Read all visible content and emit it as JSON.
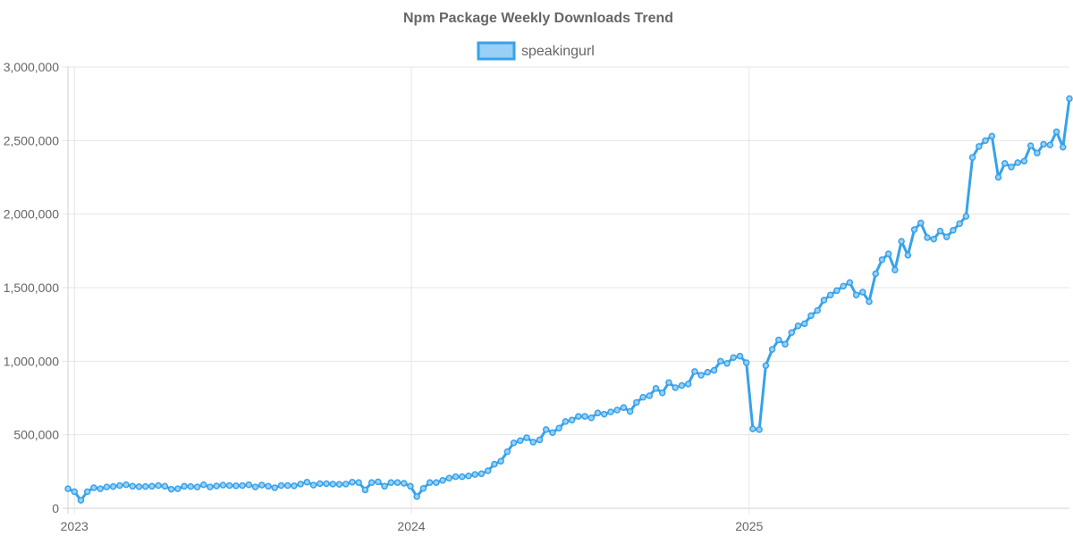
{
  "chart_data": {
    "type": "line",
    "title": "Npm Package Weekly Downloads Trend",
    "legend_position": "top-center",
    "grid": true,
    "colors": {
      "line": "#36a2eb",
      "fill": "#9ad0f5"
    },
    "ylim": [
      0,
      3000000
    ],
    "y_ticks": [
      0,
      500000,
      1000000,
      1500000,
      2000000,
      2500000,
      3000000
    ],
    "y_tick_labels": [
      "0",
      "500,000",
      "1,000,000",
      "1,500,000",
      "2,000,000",
      "2,500,000",
      "3,000,000"
    ],
    "x_range": [
      "2022-12-25",
      "2025-12-14"
    ],
    "x_ticks": [
      "2023-01-01",
      "2024-01-01",
      "2025-01-01"
    ],
    "x_tick_labels": [
      "2023",
      "2024",
      "2025"
    ],
    "series": [
      {
        "name": "speakingurl",
        "x": [
          "2022-12-25",
          "2023-01-01",
          "2023-01-08",
          "2023-01-15",
          "2023-01-22",
          "2023-01-29",
          "2023-02-05",
          "2023-02-12",
          "2023-02-19",
          "2023-02-26",
          "2023-03-05",
          "2023-03-12",
          "2023-03-19",
          "2023-03-26",
          "2023-04-02",
          "2023-04-09",
          "2023-04-16",
          "2023-04-23",
          "2023-04-30",
          "2023-05-07",
          "2023-05-14",
          "2023-05-21",
          "2023-05-28",
          "2023-06-04",
          "2023-06-11",
          "2023-06-18",
          "2023-06-25",
          "2023-07-02",
          "2023-07-09",
          "2023-07-16",
          "2023-07-23",
          "2023-07-30",
          "2023-08-06",
          "2023-08-13",
          "2023-08-20",
          "2023-08-27",
          "2023-09-03",
          "2023-09-10",
          "2023-09-17",
          "2023-09-24",
          "2023-10-01",
          "2023-10-08",
          "2023-10-15",
          "2023-10-22",
          "2023-10-29",
          "2023-11-05",
          "2023-11-12",
          "2023-11-19",
          "2023-11-26",
          "2023-12-03",
          "2023-12-10",
          "2023-12-17",
          "2023-12-24",
          "2023-12-31",
          "2024-01-07",
          "2024-01-14",
          "2024-01-21",
          "2024-01-28",
          "2024-02-04",
          "2024-02-11",
          "2024-02-18",
          "2024-02-25",
          "2024-03-03",
          "2024-03-10",
          "2024-03-17",
          "2024-03-24",
          "2024-03-31",
          "2024-04-07",
          "2024-04-14",
          "2024-04-21",
          "2024-04-28",
          "2024-05-05",
          "2024-05-12",
          "2024-05-19",
          "2024-05-26",
          "2024-06-02",
          "2024-06-09",
          "2024-06-16",
          "2024-06-23",
          "2024-06-30",
          "2024-07-07",
          "2024-07-14",
          "2024-07-21",
          "2024-07-28",
          "2024-08-04",
          "2024-08-11",
          "2024-08-18",
          "2024-08-25",
          "2024-09-01",
          "2024-09-08",
          "2024-09-15",
          "2024-09-22",
          "2024-09-29",
          "2024-10-06",
          "2024-10-13",
          "2024-10-20",
          "2024-10-27",
          "2024-11-03",
          "2024-11-10",
          "2024-11-17",
          "2024-11-24",
          "2024-12-01",
          "2024-12-08",
          "2024-12-15",
          "2024-12-22",
          "2024-12-29",
          "2025-01-05",
          "2025-01-12",
          "2025-01-19",
          "2025-01-26",
          "2025-02-02",
          "2025-02-09",
          "2025-02-16",
          "2025-02-23",
          "2025-03-02",
          "2025-03-09",
          "2025-03-16",
          "2025-03-23",
          "2025-03-30",
          "2025-04-06",
          "2025-04-13",
          "2025-04-20",
          "2025-04-27",
          "2025-05-04",
          "2025-05-11",
          "2025-05-18",
          "2025-05-25",
          "2025-06-01",
          "2025-06-08",
          "2025-06-15",
          "2025-06-22",
          "2025-06-29",
          "2025-07-06",
          "2025-07-13",
          "2025-07-20",
          "2025-07-27",
          "2025-08-03",
          "2025-08-10",
          "2025-08-17",
          "2025-08-24",
          "2025-08-31",
          "2025-09-07",
          "2025-09-14",
          "2025-09-21",
          "2025-09-28",
          "2025-10-05",
          "2025-10-12",
          "2025-10-19",
          "2025-10-26",
          "2025-11-02",
          "2025-11-09",
          "2025-11-16",
          "2025-11-23",
          "2025-11-30",
          "2025-12-07",
          "2025-12-14"
        ],
        "values": [
          133000,
          113000,
          55000,
          113000,
          140000,
          133000,
          145000,
          148000,
          155000,
          160000,
          150000,
          147000,
          148000,
          150000,
          155000,
          150000,
          130000,
          133000,
          150000,
          148000,
          145000,
          160000,
          145000,
          152000,
          158000,
          155000,
          153000,
          155000,
          160000,
          145000,
          158000,
          150000,
          140000,
          155000,
          155000,
          153000,
          165000,
          178000,
          158000,
          168000,
          168000,
          165000,
          163000,
          165000,
          178000,
          175000,
          125000,
          175000,
          180000,
          150000,
          175000,
          175000,
          170000,
          150000,
          80000,
          135000,
          175000,
          175000,
          190000,
          205000,
          215000,
          215000,
          220000,
          230000,
          235000,
          255000,
          300000,
          320000,
          385000,
          445000,
          460000,
          480000,
          450000,
          465000,
          535000,
          515000,
          545000,
          590000,
          600000,
          625000,
          625000,
          615000,
          648000,
          640000,
          655000,
          668000,
          685000,
          658000,
          720000,
          755000,
          765000,
          815000,
          785000,
          855000,
          820000,
          835000,
          845000,
          930000,
          905000,
          925000,
          938000,
          1000000,
          985000,
          1025000,
          1035000,
          990000,
          540000,
          535000,
          970000,
          1080000,
          1145000,
          1115000,
          1195000,
          1240000,
          1255000,
          1310000,
          1345000,
          1415000,
          1450000,
          1480000,
          1510000,
          1535000,
          1450000,
          1470000,
          1405000,
          1595000,
          1690000,
          1730000,
          1620000,
          1815000,
          1720000,
          1895000,
          1940000,
          1840000,
          1830000,
          1885000,
          1845000,
          1890000,
          1935000,
          1985000,
          2385000,
          2460000,
          2500000,
          2530000,
          2250000,
          2345000,
          2320000,
          2350000,
          2360000,
          2465000,
          2415000,
          2475000,
          2470000,
          2560000,
          2455000,
          2785000
        ]
      }
    ]
  }
}
